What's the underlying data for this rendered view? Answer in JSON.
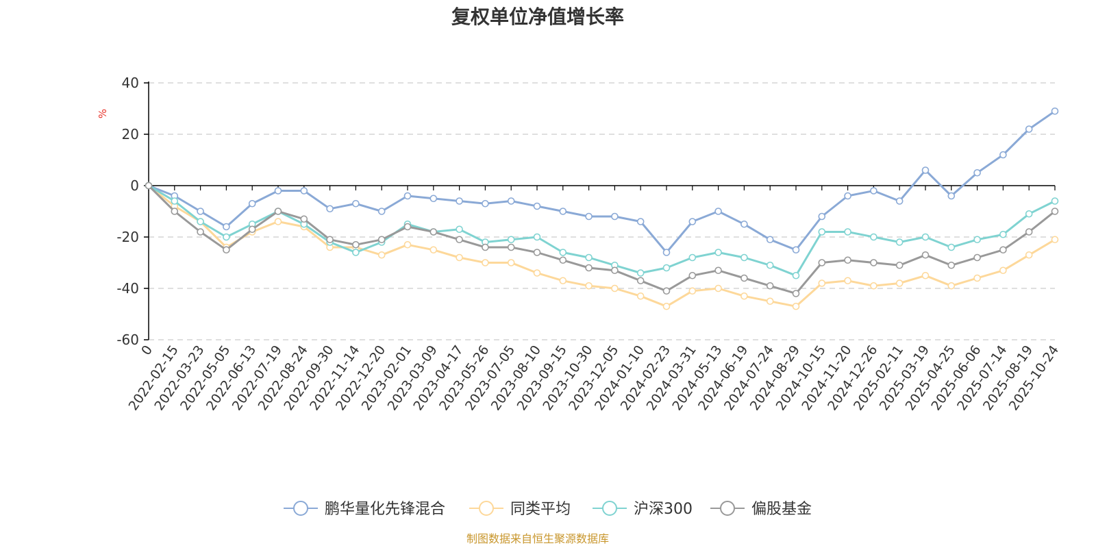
{
  "chart_data": {
    "type": "line",
    "title": "复权单位净值增长率",
    "ylabel": "%",
    "xlabel": "",
    "ylim": [
      -60,
      40
    ],
    "yticks": [
      40,
      20,
      0,
      -20,
      -40,
      -60
    ],
    "grid": true,
    "legend_position": "bottom-center",
    "categories": [
      "0",
      "2022-02-15",
      "2022-03-23",
      "2022-05-05",
      "2022-06-13",
      "2022-07-19",
      "2022-08-24",
      "2022-09-30",
      "2022-11-14",
      "2022-12-20",
      "2023-02-01",
      "2023-03-09",
      "2023-04-17",
      "2023-05-26",
      "2023-07-05",
      "2023-08-10",
      "2023-09-15",
      "2023-10-30",
      "2023-12-05",
      "2024-01-10",
      "2024-02-23",
      "2024-03-31",
      "2024-05-13",
      "2024-06-19",
      "2024-07-24",
      "2024-08-29",
      "2024-10-15",
      "2024-11-20",
      "2024-12-26",
      "2025-02-11",
      "2025-03-19",
      "2025-04-25",
      "2025-06-06",
      "2025-07-14",
      "2025-08-19",
      "2025-10-24"
    ],
    "series": [
      {
        "name": "鹏华量化先锋混合",
        "color": "#8aa9d6",
        "values": [
          0,
          -4,
          -10,
          -16,
          -7,
          -2,
          -2,
          -9,
          -7,
          -10,
          -4,
          -5,
          -6,
          -7,
          -6,
          -8,
          -10,
          -12,
          -12,
          -14,
          -26,
          -14,
          -10,
          -15,
          -21,
          -25,
          -12,
          -4,
          -2,
          -6,
          6,
          -4,
          5,
          12,
          22,
          29
        ]
      },
      {
        "name": "同类平均",
        "color": "#fdd89a",
        "values": [
          0,
          -8,
          -14,
          -24,
          -18,
          -14,
          -16,
          -24,
          -24,
          -27,
          -23,
          -25,
          -28,
          -30,
          -30,
          -34,
          -37,
          -39,
          -40,
          -43,
          -47,
          -41,
          -40,
          -43,
          -45,
          -47,
          -38,
          -37,
          -39,
          -38,
          -35,
          -39,
          -36,
          -33,
          -27,
          -21
        ]
      },
      {
        "name": "沪深300",
        "color": "#7fd3d1",
        "values": [
          0,
          -6,
          -14,
          -20,
          -15,
          -10,
          -15,
          -22,
          -26,
          -22,
          -15,
          -18,
          -17,
          -22,
          -21,
          -20,
          -26,
          -28,
          -31,
          -34,
          -32,
          -28,
          -26,
          -28,
          -31,
          -35,
          -18,
          -18,
          -20,
          -22,
          -20,
          -24,
          -21,
          -19,
          -11,
          -6
        ]
      },
      {
        "name": "偏股基金",
        "color": "#999999",
        "values": [
          0,
          -10,
          -18,
          -25,
          -17,
          -10,
          -13,
          -21,
          -23,
          -21,
          -16,
          -18,
          -21,
          -24,
          -24,
          -26,
          -29,
          -32,
          -33,
          -37,
          -41,
          -35,
          -33,
          -36,
          -39,
          -42,
          -30,
          -29,
          -30,
          -31,
          -27,
          -31,
          -28,
          -25,
          -18,
          -10
        ]
      }
    ],
    "source": "制图数据来自恒生聚源数据库"
  },
  "colors": {
    "title": "#333333",
    "axis": "#000000",
    "grid": "#cccccc",
    "unit": "#e8332a",
    "source": "#c8962c"
  }
}
